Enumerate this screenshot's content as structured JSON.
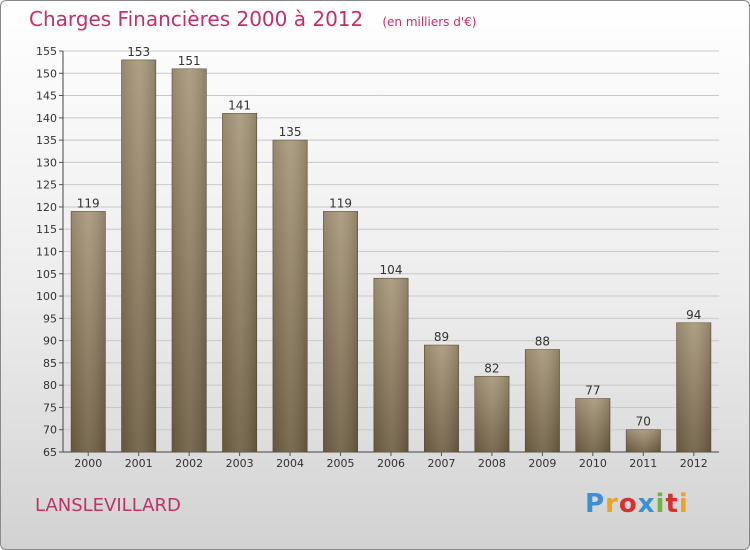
{
  "title": "Charges Financières 2000 à 2012",
  "subtitle": "(en milliers d'€)",
  "commune": "LANSLEVILLARD",
  "brand": {
    "text": "Proxiti",
    "colors": [
      "#3a8fd6",
      "#e8a51f",
      "#d8302f",
      "#3a8fd6",
      "#6fb43c",
      "#d8302f",
      "#e8a51f"
    ]
  },
  "colors": {
    "accent": "#c0306b",
    "bar_top": "#a8987a",
    "bar_bottom": "#6f5e44",
    "grid": "#c8c8c8"
  },
  "chart_data": {
    "type": "bar",
    "categories": [
      "2000",
      "2001",
      "2002",
      "2003",
      "2004",
      "2005",
      "2006",
      "2007",
      "2008",
      "2009",
      "2010",
      "2011",
      "2012"
    ],
    "values": [
      119,
      153,
      151,
      141,
      135,
      119,
      104,
      89,
      82,
      88,
      77,
      70,
      94
    ],
    "ylim": [
      65,
      155
    ],
    "yticks": [
      65,
      70,
      75,
      80,
      85,
      90,
      95,
      100,
      105,
      110,
      115,
      120,
      125,
      130,
      135,
      140,
      145,
      150,
      155
    ],
    "grid": true,
    "title": "Charges Financières 2000 à 2012",
    "xlabel": "",
    "ylabel": ""
  }
}
